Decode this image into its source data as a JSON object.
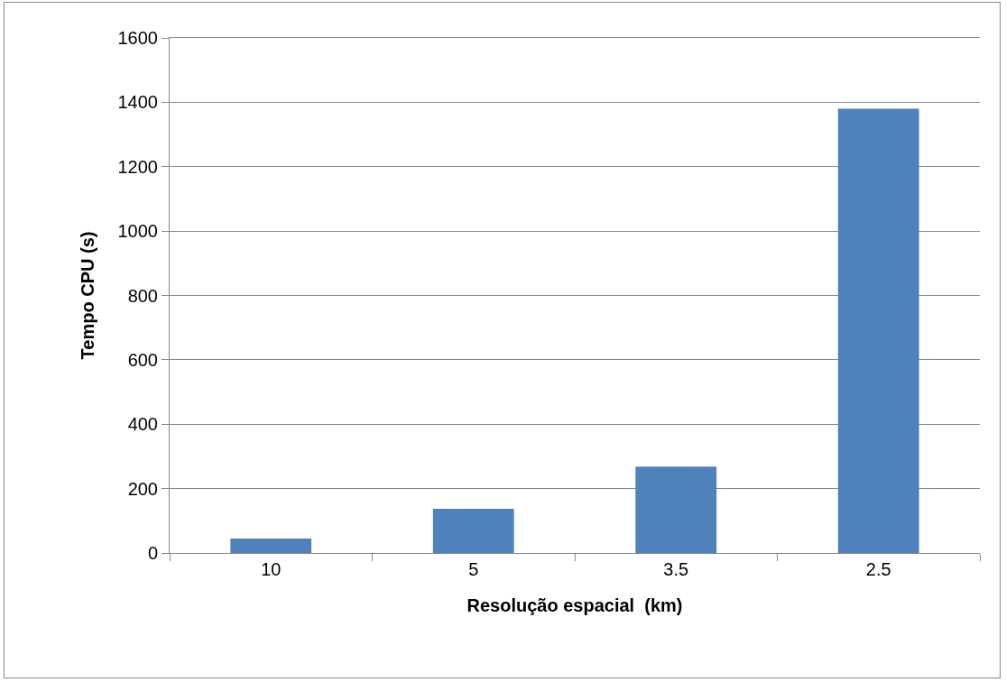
{
  "chart_data": {
    "type": "bar",
    "xlabel": "Resolução espacial  (km)",
    "ylabel": "Tempo CPU (s)",
    "categories": [
      "10",
      "5",
      "3.5",
      "2.5"
    ],
    "series": [
      {
        "color": "#4f81bd",
        "values": [
          45,
          137,
          268,
          1380
        ]
      }
    ],
    "ylim": [
      0,
      1600
    ],
    "yticks": [
      0,
      200,
      400,
      600,
      800,
      1000,
      1200,
      1400,
      1600
    ],
    "grid": "y"
  }
}
